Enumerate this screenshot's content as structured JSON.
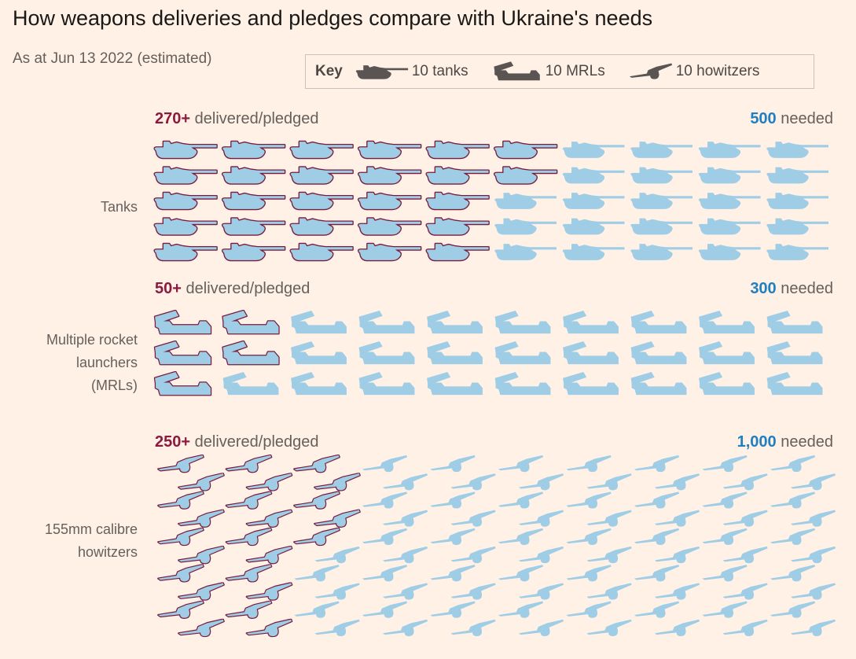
{
  "title": "How weapons deliveries and pledges compare with Ukraine's needs",
  "subtitle": "As at Jun 13 2022 (estimated)",
  "key": {
    "title": "Key",
    "items": [
      {
        "icon": "tank-icon",
        "label": "10 tanks"
      },
      {
        "icon": "mrl-icon",
        "label": "10 MRLs"
      },
      {
        "icon": "howitzer-icon",
        "label": "10 howitzers"
      }
    ]
  },
  "colors": {
    "delivered_outline": "#7a1c3d",
    "icon_fill": "#9fcde6",
    "delivered_text": "#8b1a3f",
    "needed_text": "#1f7fc0",
    "background": "#fff1e5"
  },
  "chart_data": {
    "type": "pictogram",
    "unit_per_icon": 10,
    "categories": [
      {
        "label": "Tanks",
        "delivered": 270,
        "delivered_label": "270+",
        "delivered_suffix": "delivered/pledged",
        "needed": 500,
        "needed_label": "500",
        "needed_suffix": "needed",
        "icon": "tank-icon"
      },
      {
        "label": "Multiple rocket launchers (MRLs)",
        "delivered": 50,
        "delivered_label": "50+",
        "delivered_suffix": "delivered/pledged",
        "needed": 300,
        "needed_label": "300",
        "needed_suffix": "needed",
        "icon": "mrl-icon"
      },
      {
        "label": "155mm calibre howitzers",
        "delivered": 250,
        "delivered_label": "250+",
        "delivered_suffix": "delivered/pledged",
        "needed": 1000,
        "needed_label": "1,000",
        "needed_suffix": "needed",
        "icon": "howitzer-icon"
      }
    ]
  }
}
